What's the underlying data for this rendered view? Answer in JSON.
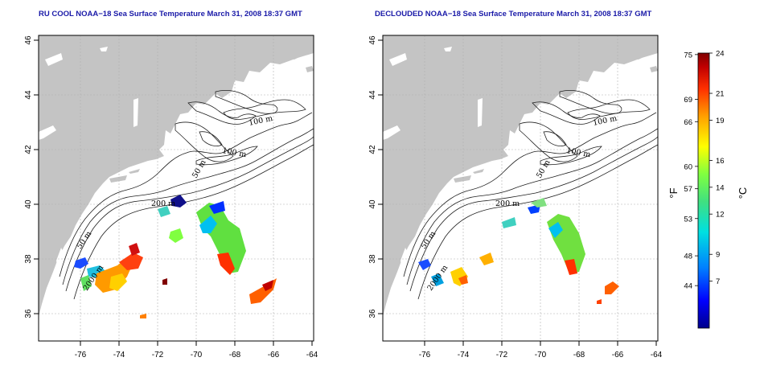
{
  "panels": [
    {
      "id": "left",
      "title": "RU COOL NOAA−18 Sea Surface Temperature March 31, 2008 18:37 GMT",
      "x_ticks": [
        "-76",
        "-74",
        "-72",
        "-70",
        "-68",
        "-66",
        "-64"
      ],
      "y_ticks": [
        "36",
        "38",
        "40",
        "42",
        "44",
        "46"
      ],
      "contours": [
        "100 m",
        "100 m",
        "50 m",
        "200 m",
        "50 m",
        "2000 m"
      ]
    },
    {
      "id": "right",
      "title": "DECLOUDED NOAA−18 Sea Surface Temperature March 31, 2008 18:37 GMT",
      "x_ticks": [
        "-76",
        "-74",
        "-72",
        "-70",
        "-68",
        "-66",
        "-64"
      ],
      "y_ticks": [
        "36",
        "38",
        "40",
        "42",
        "44",
        "46"
      ],
      "contours": [
        "100 m",
        "100 m",
        "50 m",
        "200 m",
        "50 m",
        "2000 m"
      ]
    }
  ],
  "colorbar": {
    "fahrenheit_labels": [
      "75",
      "69",
      "66",
      "60",
      "57",
      "53",
      "48",
      "44"
    ],
    "fahrenheit_values": [
      75,
      69,
      66,
      60,
      57,
      53,
      48,
      44
    ],
    "celsius_labels": [
      "24",
      "21",
      "19",
      "16",
      "14",
      "12",
      "9",
      "7"
    ],
    "celsius_values": [
      24,
      21,
      19,
      16,
      14,
      12,
      9,
      7
    ],
    "celsius_range": [
      3.5,
      24
    ],
    "fahrenheit_unit": "°F",
    "celsius_unit": "°C",
    "colors": [
      "#00008b",
      "#0000ff",
      "#0080ff",
      "#00e0e0",
      "#40e080",
      "#80ff40",
      "#ffff00",
      "#ffa000",
      "#ff3000",
      "#c00000",
      "#800000"
    ]
  },
  "colors": {
    "land": "#c4c4c4",
    "water": "#ffffff",
    "title": "#1a1aa8",
    "grid": "#b0b0b0",
    "contour": "#202020"
  }
}
